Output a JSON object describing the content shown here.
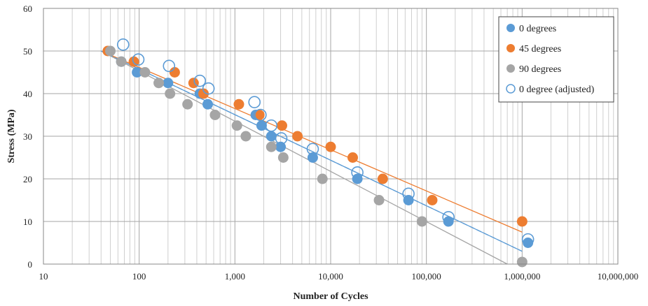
{
  "chart_data": {
    "type": "scatter",
    "xlabel": "Number of Cycles",
    "ylabel": "Stress (MPa)",
    "xscale": "log",
    "xlim": [
      10,
      10000000
    ],
    "ylim": [
      0,
      60
    ],
    "x_ticks": [
      10,
      100,
      1000,
      10000,
      100000,
      1000000,
      10000000
    ],
    "x_tick_labels": [
      "10",
      "100",
      "1,000",
      "10,000",
      "100,000",
      "1,000,000",
      "10,000,000"
    ],
    "y_ticks": [
      0,
      10,
      20,
      30,
      40,
      50,
      60
    ],
    "y_tick_labels": [
      "0",
      "10",
      "20",
      "30",
      "40",
      "50",
      "60"
    ],
    "grid": true,
    "legend_position": "top-right",
    "series": [
      {
        "name": "0 degrees",
        "color": "#5b9bd5",
        "marker": "filled-circle",
        "points": [
          [
            65,
            47.5
          ],
          [
            95,
            45
          ],
          [
            200,
            42.5
          ],
          [
            430,
            40
          ],
          [
            520,
            37.5
          ],
          [
            1650,
            35
          ],
          [
            1900,
            32.5
          ],
          [
            2400,
            30
          ],
          [
            3000,
            27.5
          ],
          [
            6500,
            25
          ],
          [
            19000,
            20
          ],
          [
            65000,
            15
          ],
          [
            170000,
            10
          ],
          [
            1150000,
            5
          ]
        ],
        "trend": [
          [
            40,
            50
          ],
          [
            1000000,
            3
          ]
        ]
      },
      {
        "name": "45 degrees",
        "color": "#ed7d31",
        "marker": "filled-circle",
        "points": [
          [
            47,
            50
          ],
          [
            88,
            47.5
          ],
          [
            235,
            45
          ],
          [
            370,
            42.5
          ],
          [
            470,
            40
          ],
          [
            1100,
            37.5
          ],
          [
            1800,
            35
          ],
          [
            3100,
            32.5
          ],
          [
            4500,
            30
          ],
          [
            10000,
            27.5
          ],
          [
            17000,
            25
          ],
          [
            35000,
            20
          ],
          [
            115000,
            15
          ],
          [
            1000000,
            10
          ]
        ],
        "trend": [
          [
            40,
            50
          ],
          [
            1000000,
            7.5
          ]
        ]
      },
      {
        "name": "90 degrees",
        "color": "#a5a5a5",
        "marker": "filled-circle",
        "points": [
          [
            50,
            50
          ],
          [
            65,
            47.5
          ],
          [
            115,
            45
          ],
          [
            160,
            42.5
          ],
          [
            210,
            40
          ],
          [
            320,
            37.5
          ],
          [
            620,
            35
          ],
          [
            1050,
            32.5
          ],
          [
            1300,
            30
          ],
          [
            2400,
            27.5
          ],
          [
            3200,
            25
          ],
          [
            8200,
            20
          ],
          [
            32000,
            15
          ],
          [
            90000,
            10
          ],
          [
            1000000,
            0.5
          ]
        ],
        "trend": [
          [
            40,
            50
          ],
          [
            700000,
            0
          ]
        ]
      },
      {
        "name": "0 degree (adjusted)",
        "color": "#5b9bd5",
        "marker": "open-circle",
        "points": [
          [
            68,
            51.5
          ],
          [
            98,
            48
          ],
          [
            205,
            46.5
          ],
          [
            430,
            43
          ],
          [
            530,
            41.2
          ],
          [
            1600,
            38
          ],
          [
            1850,
            35
          ],
          [
            2400,
            32.5
          ],
          [
            3050,
            29.5
          ],
          [
            6500,
            27
          ],
          [
            19000,
            21.5
          ],
          [
            65000,
            16.5
          ],
          [
            170000,
            11
          ],
          [
            1150000,
            5.8
          ]
        ],
        "trend": [
          [
            40,
            50
          ],
          [
            1000000,
            3
          ]
        ],
        "trend_style": "dashed"
      }
    ]
  }
}
